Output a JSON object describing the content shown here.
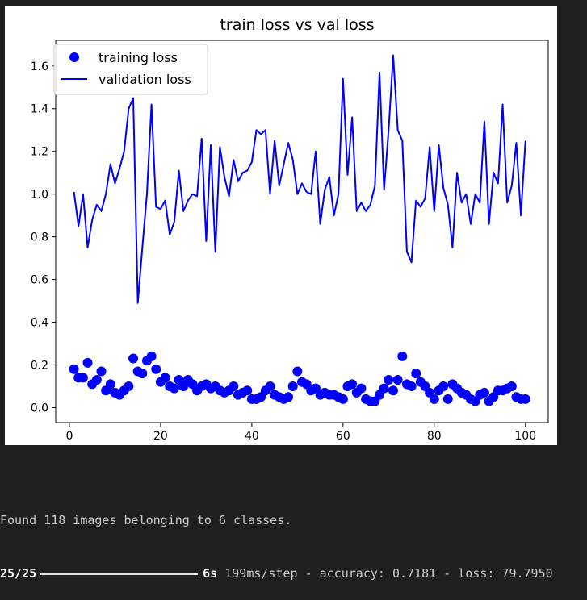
{
  "chart_data": {
    "type": "line",
    "title": "train loss vs val loss",
    "xlabel": "",
    "ylabel": "",
    "xlim": [
      -3,
      105
    ],
    "ylim": [
      -0.07,
      1.72
    ],
    "xticks": [
      0,
      20,
      40,
      60,
      80,
      100
    ],
    "yticks": [
      0.0,
      0.2,
      0.4,
      0.6,
      0.8,
      1.0,
      1.2,
      1.4,
      1.6
    ],
    "grid": false,
    "legend_position": "top-left",
    "color": "#0000ff",
    "x": [
      1,
      2,
      3,
      4,
      5,
      6,
      7,
      8,
      9,
      10,
      11,
      12,
      13,
      14,
      15,
      16,
      17,
      18,
      19,
      20,
      21,
      22,
      23,
      24,
      25,
      26,
      27,
      28,
      29,
      30,
      31,
      32,
      33,
      34,
      35,
      36,
      37,
      38,
      39,
      40,
      41,
      42,
      43,
      44,
      45,
      46,
      47,
      48,
      49,
      50,
      51,
      52,
      53,
      54,
      55,
      56,
      57,
      58,
      59,
      60,
      61,
      62,
      63,
      64,
      65,
      66,
      67,
      68,
      69,
      70,
      71,
      72,
      73,
      74,
      75,
      76,
      77,
      78,
      79,
      80,
      81,
      82,
      83,
      84,
      85,
      86,
      87,
      88,
      89,
      90,
      91,
      92,
      93,
      94,
      95,
      96,
      97,
      98,
      99,
      100
    ],
    "series": [
      {
        "name": "training loss",
        "style": "dots",
        "values": [
          0.18,
          0.14,
          0.14,
          0.21,
          0.11,
          0.13,
          0.17,
          0.08,
          0.11,
          0.07,
          0.06,
          0.08,
          0.1,
          0.23,
          0.17,
          0.16,
          0.22,
          0.24,
          0.18,
          0.12,
          0.14,
          0.1,
          0.09,
          0.13,
          0.1,
          0.13,
          0.11,
          0.08,
          0.1,
          0.11,
          0.09,
          0.1,
          0.08,
          0.07,
          0.08,
          0.1,
          0.06,
          0.07,
          0.08,
          0.04,
          0.04,
          0.05,
          0.08,
          0.1,
          0.06,
          0.05,
          0.04,
          0.05,
          0.1,
          0.17,
          0.12,
          0.11,
          0.08,
          0.09,
          0.06,
          0.07,
          0.06,
          0.06,
          0.05,
          0.04,
          0.1,
          0.11,
          0.07,
          0.09,
          0.04,
          0.03,
          0.03,
          0.06,
          0.09,
          0.13,
          0.08,
          0.13,
          0.24,
          0.11,
          0.1,
          0.16,
          0.12,
          0.1,
          0.07,
          0.04,
          0.08,
          0.1,
          0.04,
          0.11,
          0.09,
          0.07,
          0.06,
          0.04,
          0.03,
          0.06,
          0.07,
          0.03,
          0.05,
          0.08,
          0.08,
          0.09,
          0.1,
          0.05,
          0.04,
          0.04
        ]
      },
      {
        "name": "validation loss",
        "style": "line",
        "values": [
          1.01,
          0.85,
          1.0,
          0.75,
          0.88,
          0.95,
          0.92,
          1.0,
          1.14,
          1.05,
          1.12,
          1.2,
          1.4,
          1.45,
          0.49,
          0.75,
          1.0,
          1.42,
          0.94,
          0.93,
          0.97,
          0.81,
          0.87,
          1.11,
          0.92,
          0.97,
          1.0,
          0.99,
          1.26,
          0.78,
          1.23,
          0.73,
          1.22,
          1.08,
          0.99,
          1.16,
          1.06,
          1.1,
          1.11,
          1.15,
          1.3,
          1.28,
          1.3,
          1.0,
          1.25,
          1.04,
          1.14,
          1.24,
          1.16,
          1.0,
          1.05,
          1.01,
          1.0,
          1.2,
          0.86,
          1.02,
          1.08,
          0.9,
          1.0,
          1.54,
          1.09,
          1.36,
          0.92,
          0.96,
          0.92,
          0.95,
          1.04,
          1.57,
          1.02,
          1.3,
          1.65,
          1.3,
          1.25,
          0.73,
          0.68,
          0.97,
          0.94,
          0.98,
          1.22,
          0.92,
          1.23,
          1.03,
          0.95,
          0.75,
          1.1,
          0.96,
          1.0,
          0.86,
          1.0,
          0.96,
          1.34,
          0.86,
          1.1,
          1.05,
          1.42,
          0.96,
          1.04,
          1.24,
          0.9,
          1.25
        ]
      }
    ]
  },
  "console": {
    "line1": "Found 118 images belonging to 6 classes.",
    "progress_count": "25/25",
    "progress_fraction": 1.0,
    "time": "6s",
    "rest": " 199ms/step - accuracy: 0.7181 - loss: 79.7950"
  }
}
